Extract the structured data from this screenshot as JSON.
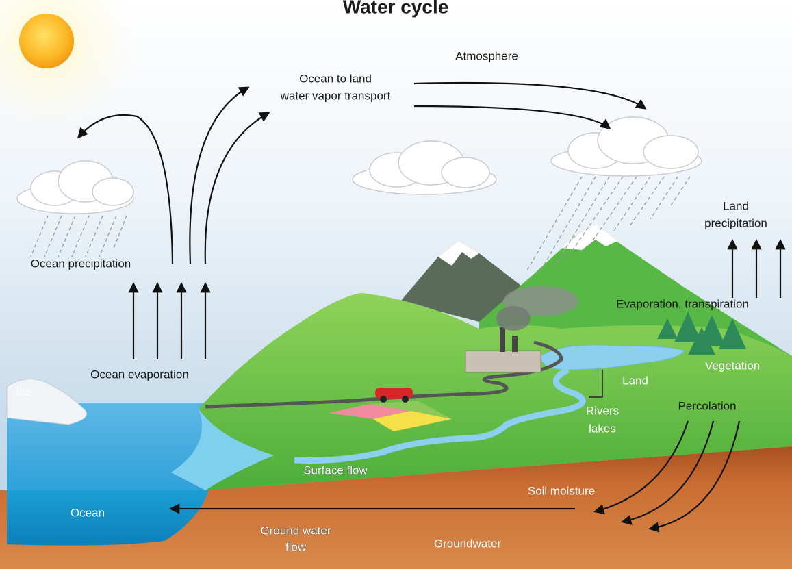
{
  "title": "Water cycle",
  "labels": {
    "atmosphere": "Atmosphere",
    "ocean_to_land": [
      "Ocean to land",
      "water vapor transport"
    ],
    "land_precipitation": [
      "Land",
      "precipitation"
    ],
    "ocean_precipitation": "Ocean precipitation",
    "evaporation_transpiration": "Evaporation, transpiration",
    "vegetation": "Vegetation",
    "ocean_evaporation": "Ocean evaporation",
    "land": "Land",
    "ice": "Ice",
    "percolation": "Percolation",
    "rivers_lakes": [
      "Rivers",
      "lakes"
    ],
    "surface_flow": "Surface flow",
    "soil_moisture": "Soil moisture",
    "ocean": "Ocean",
    "ground_water_flow": [
      "Ground water",
      "flow"
    ],
    "groundwater": "Groundwater"
  }
}
